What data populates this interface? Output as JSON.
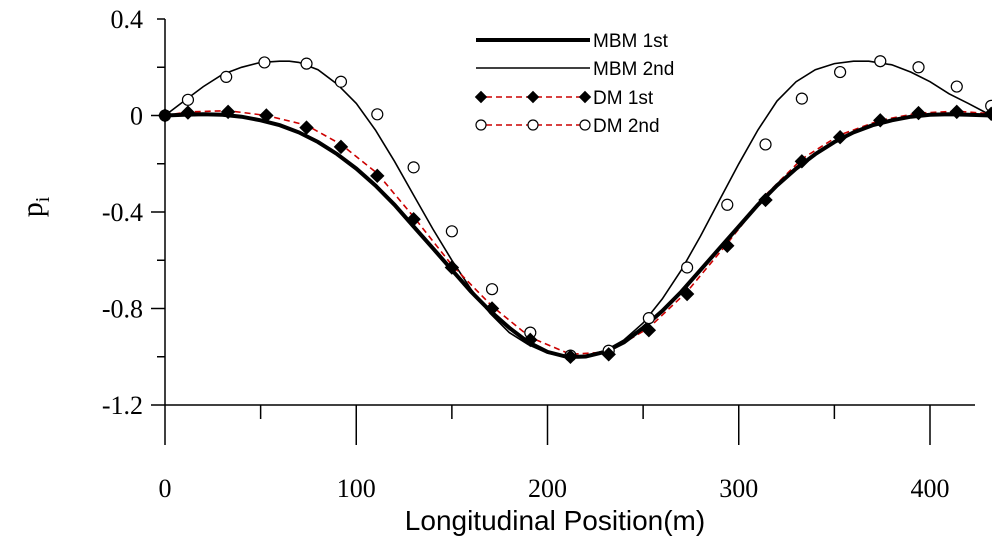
{
  "chart_data": {
    "type": "line",
    "title": "",
    "xlabel": "Longitudinal Position(m)",
    "ylabel": "p",
    "ylabel_subscript": "i",
    "xlim": [
      0,
      432
    ],
    "ylim": [
      -1.2,
      0.4
    ],
    "xticks": [
      0,
      100,
      200,
      300,
      400
    ],
    "xtick_labels": [
      "0",
      "100",
      "200",
      "300",
      "400"
    ],
    "yticks": [
      0.4,
      0,
      -0.4,
      -0.8,
      -1.2
    ],
    "ytick_labels": [
      "0.4",
      "0",
      "-0.4",
      "-0.8",
      "-1.2"
    ],
    "grid": false,
    "legend_position": "top-center",
    "series": [
      {
        "name": "MBM 1st",
        "style": "thick-solid",
        "color": "#000000",
        "x": [
          0,
          10,
          20,
          30,
          40,
          50,
          60,
          70,
          80,
          90,
          100,
          110,
          120,
          130,
          140,
          150,
          160,
          170,
          180,
          190,
          200,
          210,
          216,
          220,
          230,
          240,
          250,
          260,
          270,
          280,
          290,
          300,
          310,
          320,
          330,
          340,
          350,
          360,
          370,
          380,
          390,
          400,
          410,
          420,
          432
        ],
        "y": [
          0,
          0.003,
          0.005,
          0.003,
          -0.005,
          -0.02,
          -0.04,
          -0.07,
          -0.11,
          -0.16,
          -0.22,
          -0.29,
          -0.37,
          -0.46,
          -0.55,
          -0.64,
          -0.73,
          -0.81,
          -0.88,
          -0.94,
          -0.98,
          -1.0,
          -1.0,
          -0.999,
          -0.98,
          -0.94,
          -0.88,
          -0.81,
          -0.73,
          -0.64,
          -0.55,
          -0.46,
          -0.37,
          -0.29,
          -0.22,
          -0.16,
          -0.11,
          -0.07,
          -0.04,
          -0.02,
          -0.005,
          0.003,
          0.005,
          0.003,
          0
        ]
      },
      {
        "name": "MBM 2nd",
        "style": "thin-solid",
        "color": "#000000",
        "x": [
          0,
          10,
          20,
          30,
          40,
          50,
          60,
          65,
          70,
          80,
          90,
          100,
          110,
          120,
          130,
          140,
          150,
          160,
          170,
          180,
          190,
          200,
          210,
          216,
          220,
          230,
          240,
          250,
          260,
          270,
          280,
          290,
          300,
          310,
          320,
          330,
          340,
          350,
          360,
          368,
          380,
          390,
          400,
          410,
          420,
          432
        ],
        "y": [
          0,
          0.06,
          0.12,
          0.17,
          0.2,
          0.22,
          0.225,
          0.225,
          0.22,
          0.19,
          0.13,
          0.05,
          -0.06,
          -0.19,
          -0.33,
          -0.47,
          -0.6,
          -0.72,
          -0.82,
          -0.9,
          -0.95,
          -0.985,
          -1.0,
          -1.0,
          -0.995,
          -0.975,
          -0.93,
          -0.86,
          -0.76,
          -0.64,
          -0.5,
          -0.35,
          -0.2,
          -0.06,
          0.06,
          0.14,
          0.19,
          0.215,
          0.225,
          0.225,
          0.21,
          0.18,
          0.14,
          0.09,
          0.05,
          0
        ]
      },
      {
        "name": "DM 1st",
        "style": "red-dashed-diamond",
        "color": "#cc0000",
        "markers": {
          "x": [
            0,
            12,
            33,
            53,
            74,
            92,
            111,
            130,
            150,
            171,
            191,
            212,
            232,
            253,
            273,
            294,
            314,
            333,
            353,
            374,
            394,
            414,
            432
          ],
          "y": [
            0,
            0.012,
            0.015,
            0.0,
            -0.05,
            -0.13,
            -0.25,
            -0.43,
            -0.63,
            -0.8,
            -0.93,
            -1.0,
            -0.99,
            -0.89,
            -0.74,
            -0.54,
            -0.35,
            -0.19,
            -0.09,
            -0.02,
            0.01,
            0.015,
            0.007
          ]
        },
        "x": [
          0,
          12,
          33,
          53,
          74,
          92,
          111,
          130,
          150,
          171,
          191,
          212,
          232,
          253,
          273,
          294,
          314,
          333,
          353,
          374,
          394,
          414,
          432
        ],
        "y": [
          0,
          0.015,
          0.02,
          0.0,
          -0.04,
          -0.12,
          -0.24,
          -0.42,
          -0.62,
          -0.79,
          -0.92,
          -0.99,
          -0.98,
          -0.88,
          -0.73,
          -0.53,
          -0.33,
          -0.18,
          -0.08,
          -0.02,
          0.01,
          0.018,
          0.007
        ]
      },
      {
        "name": "DM 2nd",
        "style": "red-dashed-open-circle",
        "color": "#cc0000",
        "markers": {
          "x": [
            0,
            12,
            32,
            52,
            74,
            92,
            111,
            130,
            150,
            171,
            191,
            212,
            232,
            253,
            273,
            294,
            314,
            333,
            353,
            374,
            394,
            414,
            432
          ],
          "y": [
            0,
            0.065,
            0.16,
            0.22,
            0.215,
            0.14,
            0.005,
            -0.215,
            -0.48,
            -0.72,
            -0.9,
            -0.995,
            -0.975,
            -0.84,
            -0.63,
            -0.37,
            -0.12,
            0.07,
            0.18,
            0.225,
            0.2,
            0.12,
            0.04
          ]
        }
      }
    ]
  }
}
